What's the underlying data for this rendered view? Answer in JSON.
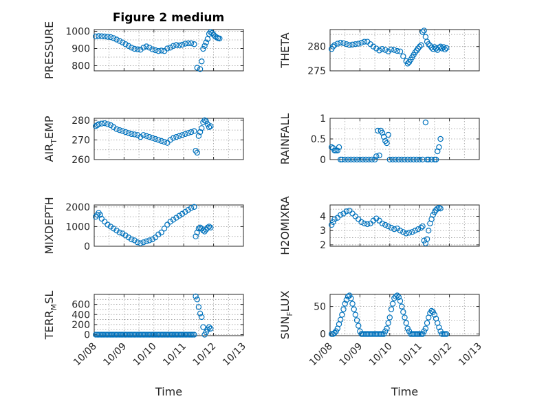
{
  "figure_title": "Figure 2 medium",
  "chart_data": [
    {
      "id": "pressure",
      "type": "scatter",
      "panel": "left-1",
      "ylabel": "PRESSURE",
      "ylabel_sub": "",
      "ylim": [
        770,
        1010
      ],
      "yticks": [
        800,
        900,
        1000
      ],
      "yticklabels": [
        "800",
        "900",
        "1000"
      ],
      "xlim": [
        0,
        5
      ],
      "x_labeled": false,
      "x": [
        0.05,
        0.15,
        0.25,
        0.35,
        0.45,
        0.55,
        0.65,
        0.75,
        0.85,
        0.95,
        1.05,
        1.15,
        1.25,
        1.35,
        1.45,
        1.55,
        1.65,
        1.75,
        1.85,
        1.95,
        2.05,
        2.15,
        2.25,
        2.35,
        2.45,
        2.55,
        2.65,
        2.75,
        2.85,
        2.95,
        3.05,
        3.15,
        3.25,
        3.35,
        3.45,
        3.55,
        3.6,
        3.65,
        3.7,
        3.75,
        3.8,
        3.85,
        3.9,
        3.95,
        4.0,
        4.05,
        4.1,
        4.15,
        4.2
      ],
      "y": [
        970,
        972,
        971,
        970,
        968,
        966,
        960,
        952,
        944,
        935,
        925,
        915,
        905,
        898,
        895,
        893,
        905,
        912,
        905,
        895,
        890,
        885,
        888,
        885,
        900,
        905,
        915,
        920,
        918,
        922,
        928,
        930,
        930,
        925,
        788,
        780,
        825,
        898,
        915,
        935,
        955,
        985,
        995,
        990,
        980,
        970,
        965,
        960,
        958
      ]
    },
    {
      "id": "theta",
      "type": "scatter",
      "panel": "right-1",
      "ylabel": "THETA",
      "ylabel_sub": "",
      "ylim": [
        275,
        283.5
      ],
      "yticks": [
        275,
        280
      ],
      "yticklabels": [
        "275",
        "280"
      ],
      "xlim": [
        0,
        5
      ],
      "x_labeled": false,
      "x": [
        0.05,
        0.1,
        0.15,
        0.25,
        0.35,
        0.45,
        0.55,
        0.65,
        0.75,
        0.85,
        0.95,
        1.05,
        1.15,
        1.25,
        1.35,
        1.45,
        1.55,
        1.65,
        1.75,
        1.85,
        1.95,
        2.05,
        2.15,
        2.25,
        2.35,
        2.45,
        2.55,
        2.6,
        2.65,
        2.7,
        2.75,
        2.8,
        2.85,
        2.9,
        2.95,
        3.0,
        3.05,
        3.1,
        3.15,
        3.2,
        3.25,
        3.3,
        3.35,
        3.4,
        3.45,
        3.5,
        3.55,
        3.6,
        3.65,
        3.7,
        3.75,
        3.8,
        3.85,
        3.9
      ],
      "y": [
        279.5,
        280,
        280.3,
        280.6,
        280.8,
        280.7,
        280.5,
        280.3,
        280.4,
        280.5,
        280.6,
        280.8,
        281,
        281,
        280.5,
        280,
        279.6,
        279.2,
        279.5,
        279.3,
        279,
        279.4,
        279.3,
        279.1,
        279,
        278,
        277,
        276.5,
        276.8,
        277.3,
        277.8,
        278.3,
        278.8,
        279.2,
        279.6,
        280,
        280.3,
        283,
        283.3,
        282,
        281,
        280.5,
        280.2,
        279.8,
        279.5,
        279.9,
        279.6,
        279.3,
        279.8,
        280,
        279.6,
        279.9,
        279.4,
        279.7
      ]
    },
    {
      "id": "air_temp",
      "type": "scatter",
      "panel": "left-2",
      "ylabel": "AIR",
      "ylabel_sub": "T",
      "ylabel_tail": "EMP",
      "ylim": [
        260,
        281
      ],
      "yticks": [
        260,
        270,
        280
      ],
      "yticklabels": [
        "260",
        "270",
        "280"
      ],
      "xlim": [
        0,
        5
      ],
      "x_labeled": false,
      "x": [
        0.05,
        0.1,
        0.15,
        0.25,
        0.35,
        0.45,
        0.55,
        0.65,
        0.75,
        0.85,
        0.95,
        1.05,
        1.15,
        1.25,
        1.35,
        1.45,
        1.55,
        1.65,
        1.75,
        1.85,
        1.95,
        2.05,
        2.15,
        2.25,
        2.35,
        2.45,
        2.55,
        2.65,
        2.75,
        2.85,
        2.95,
        3.05,
        3.15,
        3.25,
        3.35,
        3.4,
        3.45,
        3.5,
        3.55,
        3.6,
        3.65,
        3.7,
        3.75,
        3.8,
        3.85,
        3.9
      ],
      "y": [
        277,
        277.5,
        278,
        278.3,
        278.5,
        278,
        277.5,
        276.5,
        275.5,
        275,
        274.5,
        274,
        273.5,
        273,
        272.8,
        272.5,
        271.5,
        272.5,
        272,
        271.5,
        271,
        270.5,
        270,
        269.5,
        269,
        268.5,
        270,
        271,
        271.5,
        272,
        272.5,
        273,
        273.5,
        274,
        274.5,
        264.5,
        263.5,
        272,
        274,
        276,
        279,
        280,
        279.5,
        278,
        276.5,
        277
      ]
    },
    {
      "id": "rainfall",
      "type": "scatter",
      "panel": "right-2",
      "ylabel": "RAINFALL",
      "ylabel_sub": "",
      "ylim": [
        0,
        1
      ],
      "yticks": [
        0,
        0.5,
        1
      ],
      "yticklabels": [
        "0",
        "0.5",
        "1"
      ],
      "xlim": [
        0,
        5
      ],
      "x_labeled": false,
      "x": [
        0.05,
        0.1,
        0.15,
        0.2,
        0.25,
        0.3,
        0.35,
        0.4,
        0.5,
        0.6,
        0.7,
        0.8,
        0.9,
        1.0,
        1.1,
        1.2,
        1.3,
        1.4,
        1.5,
        1.55,
        1.6,
        1.65,
        1.7,
        1.75,
        1.8,
        1.85,
        1.9,
        1.95,
        2.0,
        2.1,
        2.2,
        2.3,
        2.4,
        2.5,
        2.6,
        2.7,
        2.8,
        2.9,
        3.0,
        3.1,
        3.2,
        3.25,
        3.3,
        3.4,
        3.5,
        3.55,
        3.6,
        3.65,
        3.7
      ],
      "y": [
        0.3,
        0.28,
        0.22,
        0.22,
        0.22,
        0.3,
        0,
        0,
        0,
        0,
        0,
        0,
        0,
        0,
        0,
        0,
        0,
        0,
        0,
        0.08,
        0.7,
        0.1,
        0.7,
        0.65,
        0.55,
        0.45,
        0.4,
        0.6,
        0,
        0,
        0,
        0,
        0,
        0,
        0,
        0,
        0,
        0,
        0,
        0,
        0.9,
        0,
        0,
        0,
        0,
        0,
        0.2,
        0.3,
        0.5
      ]
    },
    {
      "id": "mixdepth",
      "type": "scatter",
      "panel": "left-3",
      "ylabel": "MIXDEPTH",
      "ylabel_sub": "",
      "ylim": [
        0,
        2100
      ],
      "yticks": [
        0,
        1000,
        2000
      ],
      "yticklabels": [
        "0",
        "1000",
        "2000"
      ],
      "xlim": [
        0,
        5
      ],
      "x_labeled": false,
      "x": [
        0.05,
        0.1,
        0.15,
        0.2,
        0.25,
        0.35,
        0.45,
        0.55,
        0.65,
        0.75,
        0.85,
        0.95,
        1.05,
        1.15,
        1.25,
        1.35,
        1.45,
        1.55,
        1.65,
        1.75,
        1.85,
        1.95,
        2.05,
        2.15,
        2.25,
        2.35,
        2.45,
        2.55,
        2.65,
        2.75,
        2.85,
        2.95,
        3.05,
        3.15,
        3.25,
        3.35,
        3.4,
        3.45,
        3.5,
        3.55,
        3.6,
        3.65,
        3.7,
        3.75,
        3.8,
        3.85,
        3.9
      ],
      "y": [
        1500,
        1600,
        1700,
        1600,
        1400,
        1250,
        1100,
        1000,
        900,
        800,
        700,
        650,
        550,
        450,
        350,
        300,
        200,
        150,
        200,
        250,
        300,
        350,
        450,
        600,
        700,
        900,
        1100,
        1250,
        1350,
        1450,
        1550,
        1650,
        1750,
        1850,
        1950,
        2000,
        500,
        700,
        900,
        950,
        900,
        800,
        750,
        850,
        950,
        1000,
        950
      ]
    },
    {
      "id": "h2omixra",
      "type": "scatter",
      "panel": "right-3",
      "ylabel": "H2OMIXRA",
      "ylabel_sub": "",
      "ylim": [
        1.9,
        4.8
      ],
      "yticks": [
        2,
        3,
        4
      ],
      "yticklabels": [
        "2",
        "3",
        "4"
      ],
      "xlim": [
        0,
        5
      ],
      "x_labeled": false,
      "x": [
        0.05,
        0.1,
        0.15,
        0.25,
        0.35,
        0.45,
        0.55,
        0.65,
        0.75,
        0.85,
        0.95,
        1.05,
        1.15,
        1.25,
        1.35,
        1.45,
        1.55,
        1.65,
        1.75,
        1.85,
        1.95,
        2.05,
        2.15,
        2.25,
        2.35,
        2.45,
        2.55,
        2.65,
        2.75,
        2.85,
        2.95,
        3.05,
        3.1,
        3.15,
        3.2,
        3.25,
        3.3,
        3.35,
        3.4,
        3.45,
        3.5,
        3.55,
        3.6,
        3.65,
        3.7
      ],
      "y": [
        3.4,
        3.6,
        3.8,
        3.9,
        4.1,
        4.2,
        4.35,
        4.4,
        4.2,
        4.0,
        3.8,
        3.6,
        3.5,
        3.45,
        3.5,
        3.7,
        3.85,
        3.7,
        3.5,
        3.4,
        3.3,
        3.2,
        3.1,
        3.15,
        3.0,
        2.9,
        2.8,
        2.85,
        2.9,
        3.0,
        3.1,
        3.2,
        3.3,
        2.3,
        2.1,
        2.4,
        3.0,
        3.5,
        3.8,
        4.1,
        4.3,
        4.45,
        4.55,
        4.6,
        4.55
      ]
    },
    {
      "id": "terr_msl",
      "type": "scatter",
      "panel": "left-4",
      "ylabel": "TERR",
      "ylabel_sub": "M",
      "ylabel_tail": "SL",
      "ylim": [
        -20,
        800
      ],
      "yticks": [
        0,
        200,
        400,
        600
      ],
      "yticklabels": [
        "0",
        "200",
        "400",
        "600"
      ],
      "xlim": [
        0,
        5
      ],
      "x_labeled": true,
      "x": [
        0.05,
        0.1,
        0.15,
        0.2,
        0.25,
        0.3,
        0.35,
        0.4,
        0.45,
        0.5,
        0.55,
        0.6,
        0.65,
        0.7,
        0.75,
        0.8,
        0.85,
        0.9,
        0.95,
        1.0,
        1.05,
        1.1,
        1.15,
        1.2,
        1.25,
        1.3,
        1.35,
        1.4,
        1.45,
        1.5,
        1.55,
        1.6,
        1.65,
        1.7,
        1.75,
        1.8,
        1.85,
        1.9,
        1.95,
        2.0,
        2.05,
        2.1,
        2.15,
        2.2,
        2.25,
        2.3,
        2.35,
        2.4,
        2.45,
        2.5,
        2.55,
        2.6,
        2.65,
        2.7,
        2.75,
        2.8,
        2.85,
        2.9,
        2.95,
        3.0,
        3.05,
        3.1,
        3.15,
        3.2,
        3.25,
        3.3,
        3.35,
        3.4,
        3.45,
        3.5,
        3.55,
        3.6,
        3.65,
        3.7,
        3.75,
        3.8,
        3.85,
        3.9
      ],
      "y": [
        0,
        0,
        0,
        0,
        0,
        0,
        0,
        0,
        0,
        0,
        0,
        0,
        0,
        0,
        0,
        0,
        0,
        0,
        0,
        0,
        0,
        0,
        0,
        0,
        0,
        0,
        0,
        0,
        0,
        0,
        0,
        0,
        0,
        0,
        0,
        0,
        0,
        0,
        0,
        0,
        0,
        0,
        0,
        0,
        0,
        0,
        0,
        0,
        0,
        0,
        0,
        0,
        0,
        0,
        0,
        0,
        0,
        0,
        0,
        0,
        0,
        0,
        0,
        0,
        0,
        0,
        0,
        760,
        700,
        550,
        420,
        350,
        150,
        0,
        50,
        100,
        150,
        120
      ],
      "xticklabels": [
        "10/08",
        "10/09",
        "10/10",
        "10/11",
        "10/12",
        "10/13"
      ],
      "xlabel": "Time"
    },
    {
      "id": "sun_flux",
      "type": "scatter",
      "panel": "right-4",
      "ylabel": "SUN",
      "ylabel_sub": "F",
      "ylabel_tail": "LUX",
      "ylim": [
        -3,
        72
      ],
      "yticks": [
        0,
        50
      ],
      "yticklabels": [
        "0",
        "50"
      ],
      "xlim": [
        0,
        5
      ],
      "x_labeled": true,
      "x": [
        0.05,
        0.1,
        0.15,
        0.2,
        0.25,
        0.3,
        0.35,
        0.4,
        0.45,
        0.5,
        0.55,
        0.6,
        0.65,
        0.7,
        0.75,
        0.8,
        0.85,
        0.9,
        0.95,
        1.0,
        1.05,
        1.1,
        1.15,
        1.2,
        1.25,
        1.3,
        1.35,
        1.4,
        1.45,
        1.5,
        1.55,
        1.6,
        1.65,
        1.7,
        1.75,
        1.8,
        1.85,
        1.9,
        1.95,
        2.0,
        2.05,
        2.1,
        2.15,
        2.2,
        2.25,
        2.3,
        2.35,
        2.4,
        2.45,
        2.5,
        2.55,
        2.6,
        2.65,
        2.7,
        2.75,
        2.8,
        2.85,
        2.9,
        2.95,
        3.0,
        3.05,
        3.1,
        3.15,
        3.2,
        3.25,
        3.3,
        3.35,
        3.4,
        3.45,
        3.5,
        3.55,
        3.6,
        3.65,
        3.7,
        3.75,
        3.8,
        3.85,
        3.9
      ],
      "y": [
        0,
        0,
        2,
        5,
        10,
        18,
        26,
        35,
        45,
        55,
        62,
        68,
        70,
        65,
        55,
        45,
        35,
        25,
        15,
        5,
        0,
        0,
        0,
        0,
        0,
        0,
        0,
        0,
        0,
        0,
        0,
        0,
        0,
        0,
        0,
        0,
        5,
        10,
        20,
        30,
        45,
        55,
        65,
        68,
        70,
        67,
        60,
        50,
        40,
        30,
        20,
        10,
        5,
        0,
        0,
        0,
        0,
        0,
        0,
        0,
        0,
        0,
        5,
        10,
        20,
        30,
        38,
        42,
        40,
        35,
        28,
        20,
        12,
        5,
        0,
        0,
        0,
        0
      ],
      "xticklabels": [
        "10/08",
        "10/09",
        "10/10",
        "10/11",
        "10/12",
        "10/13"
      ],
      "xlabel": "Time"
    }
  ]
}
